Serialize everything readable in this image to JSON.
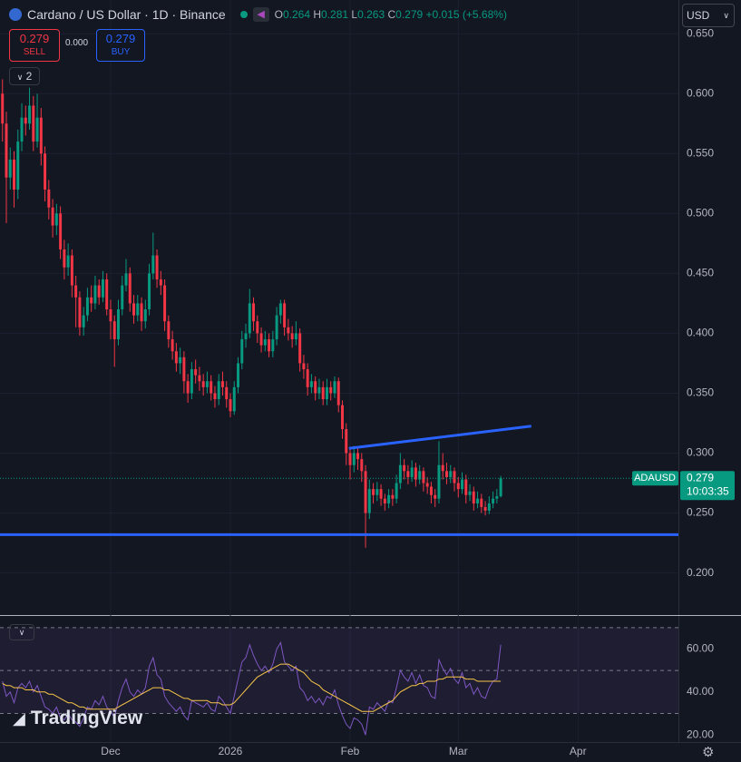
{
  "header": {
    "symbol": "Cardano / US Dollar · 1D · Binance",
    "o": "O",
    "h": "H",
    "l": "L",
    "c": "C",
    "change": "+0.015",
    "change_pct": "(+5.68%)",
    "sell": "SELL",
    "spread": "0.000",
    "buy": "BUY",
    "indicators": "2",
    "currency": "USD",
    "watermark": "TradingView"
  },
  "chart_data": [
    {
      "type": "candlestick",
      "up_color": "#089981",
      "down_color": "#f23645",
      "x": [
        2,
        3,
        4,
        5,
        6,
        7,
        8,
        9,
        10,
        11,
        12,
        13,
        14,
        15,
        16,
        17,
        18,
        19,
        20,
        21,
        22,
        23,
        24,
        25,
        26,
        27,
        28,
        29,
        30,
        31,
        32,
        33,
        34,
        35,
        36,
        37,
        38,
        39,
        40,
        41,
        42,
        43,
        44,
        45,
        46,
        47,
        48,
        49,
        50,
        51,
        52,
        53,
        54,
        55,
        56,
        57,
        58,
        59,
        60,
        61,
        62,
        63,
        64,
        65,
        66,
        67,
        68,
        69,
        70,
        71,
        72,
        73,
        74,
        75,
        76,
        77,
        78,
        79,
        80,
        81,
        82,
        83,
        84,
        85,
        86,
        87,
        88,
        89,
        90,
        91,
        92,
        93,
        94,
        95,
        96,
        97,
        98,
        99,
        100,
        101,
        102,
        103,
        104,
        105,
        106,
        107,
        108,
        109,
        110,
        111,
        112,
        113,
        114,
        115,
        116,
        117,
        118,
        119,
        120,
        121,
        122,
        123,
        124,
        125,
        126,
        127,
        128,
        129,
        130,
        131
      ],
      "open": [
        0.6,
        0.575,
        0.53,
        0.545,
        0.52,
        0.56,
        0.58,
        0.575,
        0.59,
        0.56,
        0.58,
        0.55,
        0.52,
        0.505,
        0.49,
        0.5,
        0.47,
        0.455,
        0.465,
        0.44,
        0.43,
        0.405,
        0.415,
        0.43,
        0.425,
        0.44,
        0.43,
        0.445,
        0.42,
        0.41,
        0.395,
        0.42,
        0.44,
        0.45,
        0.425,
        0.415,
        0.425,
        0.41,
        0.42,
        0.45,
        0.465,
        0.445,
        0.44,
        0.41,
        0.395,
        0.385,
        0.375,
        0.38,
        0.36,
        0.35,
        0.37,
        0.365,
        0.36,
        0.355,
        0.36,
        0.35,
        0.345,
        0.36,
        0.355,
        0.345,
        0.335,
        0.355,
        0.375,
        0.395,
        0.4,
        0.425,
        0.41,
        0.4,
        0.39,
        0.395,
        0.385,
        0.395,
        0.415,
        0.425,
        0.405,
        0.4,
        0.395,
        0.4,
        0.375,
        0.37,
        0.355,
        0.36,
        0.35,
        0.355,
        0.345,
        0.355,
        0.35,
        0.36,
        0.34,
        0.32,
        0.3,
        0.29,
        0.3,
        0.295,
        0.285,
        0.25,
        0.27,
        0.265,
        0.27,
        0.262,
        0.258,
        0.265,
        0.262,
        0.275,
        0.29,
        0.285,
        0.28,
        0.288,
        0.278,
        0.285,
        0.275,
        0.272,
        0.265,
        0.262,
        0.29,
        0.285,
        0.28,
        0.285,
        0.275,
        0.27,
        0.278,
        0.265,
        0.268,
        0.258,
        0.262,
        0.255,
        0.252,
        0.258,
        0.262,
        0.264
      ],
      "high": [
        0.612,
        0.585,
        0.555,
        0.552,
        0.57,
        0.592,
        0.59,
        0.605,
        0.598,
        0.6,
        0.588,
        0.556,
        0.528,
        0.512,
        0.508,
        0.506,
        0.478,
        0.475,
        0.47,
        0.448,
        0.435,
        0.422,
        0.438,
        0.44,
        0.448,
        0.445,
        0.452,
        0.45,
        0.428,
        0.415,
        0.428,
        0.448,
        0.462,
        0.455,
        0.432,
        0.432,
        0.43,
        0.428,
        0.458,
        0.484,
        0.47,
        0.452,
        0.445,
        0.415,
        0.402,
        0.392,
        0.388,
        0.385,
        0.366,
        0.376,
        0.378,
        0.372,
        0.366,
        0.368,
        0.365,
        0.356,
        0.366,
        0.368,
        0.36,
        0.35,
        0.36,
        0.38,
        0.402,
        0.408,
        0.437,
        0.43,
        0.415,
        0.405,
        0.402,
        0.4,
        0.402,
        0.422,
        0.428,
        0.428,
        0.412,
        0.406,
        0.41,
        0.404,
        0.382,
        0.375,
        0.366,
        0.364,
        0.362,
        0.36,
        0.362,
        0.36,
        0.364,
        0.363,
        0.344,
        0.325,
        0.305,
        0.306,
        0.304,
        0.3,
        0.29,
        0.278,
        0.275,
        0.276,
        0.274,
        0.266,
        0.27,
        0.27,
        0.282,
        0.3,
        0.295,
        0.29,
        0.294,
        0.292,
        0.29,
        0.288,
        0.28,
        0.276,
        0.27,
        0.31,
        0.3,
        0.292,
        0.29,
        0.288,
        0.28,
        0.284,
        0.282,
        0.274,
        0.272,
        0.268,
        0.266,
        0.26,
        0.264,
        0.268,
        0.27,
        0.281
      ],
      "low": [
        0.56,
        0.492,
        0.52,
        0.505,
        0.512,
        0.552,
        0.565,
        0.57,
        0.552,
        0.555,
        0.54,
        0.51,
        0.495,
        0.48,
        0.482,
        0.462,
        0.445,
        0.448,
        0.43,
        0.405,
        0.398,
        0.398,
        0.41,
        0.418,
        0.42,
        0.424,
        0.426,
        0.415,
        0.395,
        0.372,
        0.39,
        0.415,
        0.435,
        0.418,
        0.408,
        0.41,
        0.402,
        0.404,
        0.415,
        0.445,
        0.438,
        0.432,
        0.402,
        0.388,
        0.378,
        0.368,
        0.366,
        0.35,
        0.342,
        0.345,
        0.358,
        0.352,
        0.348,
        0.35,
        0.344,
        0.338,
        0.34,
        0.348,
        0.338,
        0.33,
        0.332,
        0.35,
        0.37,
        0.388,
        0.396,
        0.402,
        0.392,
        0.384,
        0.385,
        0.38,
        0.38,
        0.39,
        0.408,
        0.398,
        0.394,
        0.388,
        0.39,
        0.368,
        0.362,
        0.348,
        0.35,
        0.344,
        0.345,
        0.34,
        0.34,
        0.344,
        0.346,
        0.334,
        0.312,
        0.29,
        0.278,
        0.284,
        0.286,
        0.276,
        0.221,
        0.245,
        0.258,
        0.26,
        0.256,
        0.252,
        0.254,
        0.256,
        0.258,
        0.27,
        0.278,
        0.274,
        0.276,
        0.272,
        0.274,
        0.268,
        0.266,
        0.258,
        0.255,
        0.258,
        0.278,
        0.274,
        0.275,
        0.268,
        0.263,
        0.266,
        0.258,
        0.26,
        0.252,
        0.254,
        0.25,
        0.248,
        0.249,
        0.254,
        0.258,
        0.263
      ],
      "close": [
        0.575,
        0.53,
        0.545,
        0.52,
        0.56,
        0.58,
        0.575,
        0.59,
        0.56,
        0.58,
        0.55,
        0.52,
        0.505,
        0.49,
        0.5,
        0.47,
        0.455,
        0.465,
        0.44,
        0.43,
        0.405,
        0.415,
        0.43,
        0.425,
        0.44,
        0.43,
        0.445,
        0.42,
        0.41,
        0.395,
        0.42,
        0.44,
        0.45,
        0.425,
        0.415,
        0.425,
        0.41,
        0.42,
        0.45,
        0.465,
        0.445,
        0.44,
        0.41,
        0.395,
        0.385,
        0.375,
        0.38,
        0.36,
        0.35,
        0.37,
        0.365,
        0.36,
        0.355,
        0.36,
        0.35,
        0.345,
        0.36,
        0.355,
        0.345,
        0.335,
        0.355,
        0.375,
        0.395,
        0.4,
        0.425,
        0.41,
        0.4,
        0.39,
        0.395,
        0.385,
        0.395,
        0.415,
        0.425,
        0.405,
        0.4,
        0.395,
        0.4,
        0.375,
        0.37,
        0.355,
        0.36,
        0.35,
        0.355,
        0.345,
        0.355,
        0.35,
        0.36,
        0.34,
        0.32,
        0.3,
        0.29,
        0.3,
        0.295,
        0.285,
        0.25,
        0.27,
        0.265,
        0.27,
        0.262,
        0.258,
        0.265,
        0.262,
        0.275,
        0.29,
        0.285,
        0.28,
        0.288,
        0.278,
        0.285,
        0.275,
        0.272,
        0.265,
        0.262,
        0.29,
        0.285,
        0.28,
        0.285,
        0.275,
        0.27,
        0.278,
        0.265,
        0.268,
        0.258,
        0.262,
        0.255,
        0.252,
        0.258,
        0.262,
        0.264,
        0.279
      ],
      "xlim": [
        1.36,
        177
      ],
      "xticks": [
        {
          "value": 30,
          "label": "Dec"
        },
        {
          "value": 61,
          "label": "2026"
        },
        {
          "value": 92,
          "label": "Feb"
        },
        {
          "value": 120,
          "label": "Mar"
        },
        {
          "value": 151,
          "label": "Apr"
        }
      ],
      "ylim": [
        0.18,
        0.66
      ],
      "yticks": [
        {
          "value": 0.2,
          "label": "0.200"
        },
        {
          "value": 0.25,
          "label": "0.250"
        },
        {
          "value": 0.3,
          "label": "0.300"
        },
        {
          "value": 0.35,
          "label": "0.350"
        },
        {
          "value": 0.4,
          "label": "0.400"
        },
        {
          "value": 0.45,
          "label": "0.450"
        },
        {
          "value": 0.5,
          "label": "0.500"
        },
        {
          "value": 0.55,
          "label": "0.550"
        },
        {
          "value": 0.6,
          "label": "0.600"
        },
        {
          "value": 0.65,
          "label": "0.650"
        }
      ],
      "grid": true,
      "trendline_color": "#2962ff",
      "trendlines": [
        {
          "x": [
            91.7,
            138.9
          ],
          "values": [
            0.304,
            0.3225
          ]
        },
        {
          "x": [
            1.36,
            177
          ],
          "values": [
            0.232,
            0.232
          ]
        }
      ],
      "last_label": "ADAUSD",
      "countdown": "10:03:35"
    },
    {
      "type": "line",
      "series": [
        {
          "color": "#7e57c2",
          "values": [
            45,
            38,
            40,
            35,
            42,
            44,
            42,
            45,
            40,
            43,
            38,
            33,
            32,
            30,
            33,
            28,
            27,
            30,
            27,
            26,
            24,
            28,
            33,
            32,
            36,
            34,
            38,
            33,
            31,
            28,
            36,
            42,
            46,
            40,
            38,
            41,
            39,
            42,
            52,
            56,
            48,
            46,
            38,
            35,
            33,
            31,
            33,
            29,
            27,
            36,
            35,
            34,
            33,
            35,
            32,
            31,
            38,
            36,
            33,
            30,
            38,
            46,
            54,
            56,
            62,
            57,
            53,
            50,
            52,
            49,
            53,
            60,
            63,
            54,
            52,
            50,
            52,
            42,
            40,
            36,
            38,
            35,
            37,
            34,
            38,
            37,
            41,
            34,
            29,
            25,
            23,
            28,
            27,
            25,
            20,
            33,
            32,
            35,
            33,
            31,
            36,
            35,
            42,
            50,
            47,
            45,
            49,
            44,
            48,
            43,
            42,
            38,
            37,
            55,
            51,
            48,
            51,
            46,
            44,
            49,
            42,
            44,
            39,
            42,
            38,
            37,
            42,
            45,
            46,
            62
          ]
        },
        {
          "color": "#f7c548",
          "values": [
            44,
            43,
            43,
            42,
            42,
            42,
            41,
            41,
            41,
            40,
            40,
            40,
            39,
            39,
            38,
            37,
            36,
            35,
            35,
            34,
            33,
            33,
            32,
            32,
            32,
            32,
            32,
            32,
            32,
            32,
            33,
            34,
            35,
            36,
            37,
            38,
            39,
            40,
            41,
            42,
            42,
            42,
            41,
            41,
            40,
            39,
            38,
            37,
            37,
            36,
            36,
            36,
            36,
            36,
            35,
            35,
            35,
            34,
            34,
            34,
            35,
            37,
            39,
            41,
            43,
            45,
            47,
            48,
            49,
            50,
            51,
            52,
            53,
            53,
            53,
            52,
            51,
            50,
            49,
            47,
            45,
            44,
            43,
            41,
            40,
            39,
            38,
            37,
            36,
            35,
            34,
            33,
            32,
            31,
            31,
            31,
            31,
            32,
            33,
            34,
            35,
            36,
            38,
            40,
            41,
            42,
            43,
            43,
            44,
            44,
            45,
            45,
            45,
            46,
            46,
            47,
            47,
            47,
            47,
            47,
            46,
            46,
            46,
            45,
            45,
            45,
            45,
            45,
            45,
            45
          ]
        }
      ],
      "ylim": [
        16.7,
        75
      ],
      "yticks": [
        {
          "value": 20,
          "label": "20.00"
        },
        {
          "value": 40,
          "label": "40.00"
        },
        {
          "value": 60,
          "label": "60.00"
        }
      ],
      "levels": [
        70,
        50,
        30
      ],
      "band_color": "#7e57c2"
    }
  ]
}
